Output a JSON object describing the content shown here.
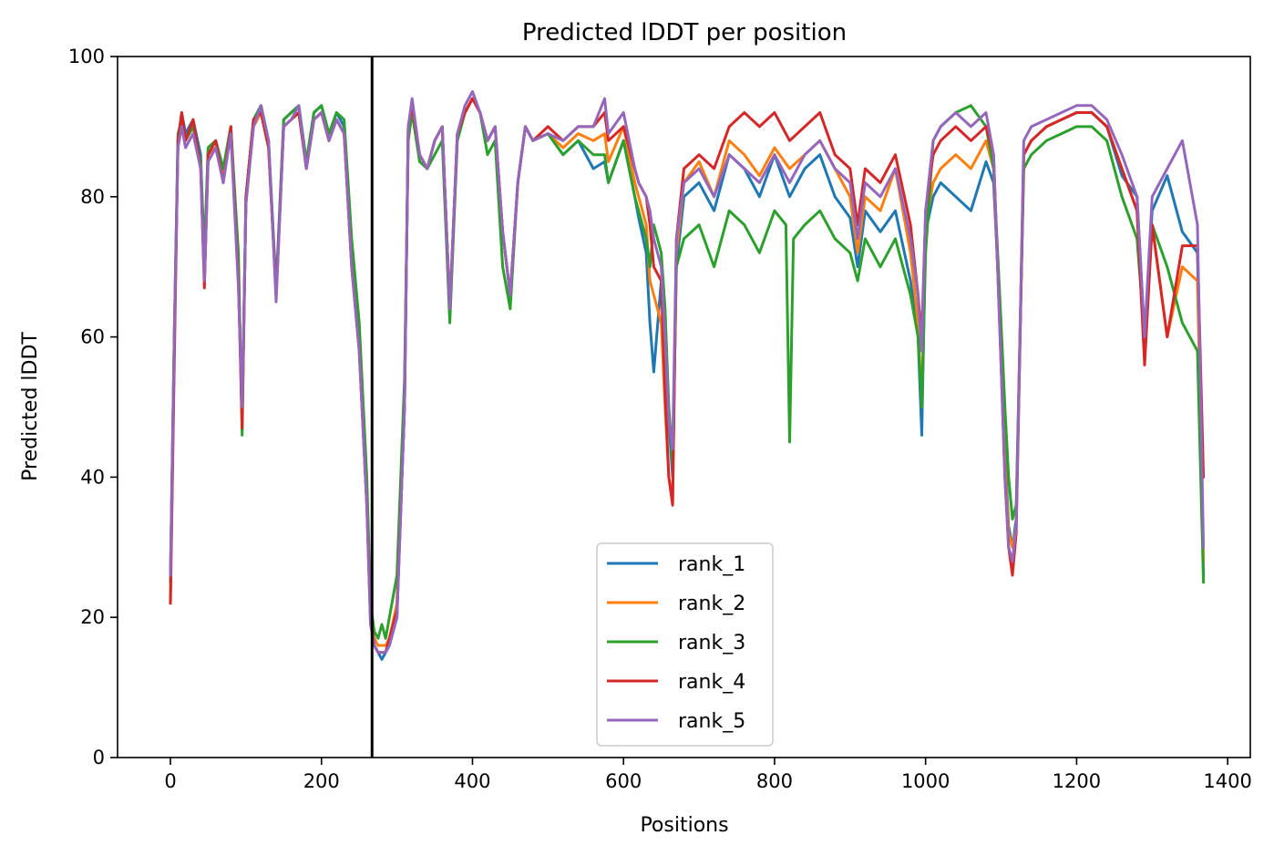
{
  "chart_data": {
    "type": "line",
    "title": "Predicted lDDT per position",
    "xlabel": "Positions",
    "ylabel": "Predicted lDDT",
    "xlim": [
      -70,
      1430
    ],
    "ylim": [
      0,
      100
    ],
    "xticks": [
      0,
      200,
      400,
      600,
      800,
      1000,
      1200,
      1400
    ],
    "yticks": [
      0,
      20,
      40,
      60,
      80,
      100
    ],
    "grid": false,
    "legend": "bottom-center",
    "vline_x": 267,
    "series": [
      {
        "name": "rank_1",
        "color": "#1f77b4",
        "x": [
          0,
          5,
          10,
          15,
          20,
          30,
          40,
          45,
          50,
          60,
          70,
          80,
          90,
          95,
          100,
          110,
          120,
          130,
          140,
          150,
          160,
          170,
          180,
          190,
          200,
          210,
          220,
          230,
          240,
          250,
          260,
          265,
          270,
          275,
          280,
          285,
          290,
          300,
          310,
          315,
          320,
          330,
          340,
          350,
          360,
          370,
          380,
          390,
          400,
          410,
          420,
          430,
          440,
          450,
          460,
          470,
          480,
          500,
          520,
          540,
          560,
          575,
          580,
          600,
          615,
          620,
          630,
          635,
          640,
          650,
          655,
          660,
          665,
          670,
          680,
          700,
          720,
          740,
          760,
          780,
          800,
          820,
          840,
          860,
          880,
          900,
          910,
          920,
          940,
          960,
          980,
          990,
          995,
          1000,
          1010,
          1020,
          1040,
          1060,
          1080,
          1090,
          1100,
          1105,
          1110,
          1115,
          1120,
          1130,
          1140,
          1160,
          1180,
          1200,
          1220,
          1240,
          1260,
          1280,
          1290,
          1300,
          1320,
          1340,
          1360,
          1368
        ],
        "y": [
          26,
          60,
          88,
          92,
          89,
          91,
          86,
          70,
          87,
          88,
          84,
          90,
          70,
          48,
          80,
          91,
          93,
          88,
          67,
          91,
          92,
          93,
          85,
          92,
          93,
          89,
          92,
          90,
          72,
          60,
          38,
          20,
          16,
          15,
          14,
          15,
          16,
          20,
          50,
          90,
          93,
          86,
          84,
          88,
          90,
          64,
          89,
          92,
          94,
          92,
          88,
          90,
          75,
          66,
          82,
          90,
          88,
          89,
          86,
          88,
          84,
          85,
          82,
          88,
          80,
          77,
          72,
          62,
          55,
          68,
          60,
          48,
          40,
          70,
          80,
          82,
          78,
          86,
          84,
          80,
          86,
          80,
          84,
          86,
          80,
          77,
          70,
          78,
          75,
          78,
          68,
          60,
          46,
          75,
          80,
          82,
          80,
          78,
          85,
          82,
          60,
          44,
          33,
          30,
          34,
          86,
          88,
          90,
          91,
          92,
          92,
          90,
          83,
          80,
          60,
          78,
          83,
          75,
          72,
          26
        ]
      },
      {
        "name": "rank_2",
        "color": "#ff7f0e",
        "x": [
          0,
          5,
          10,
          15,
          20,
          30,
          40,
          45,
          50,
          60,
          70,
          80,
          90,
          95,
          100,
          110,
          120,
          130,
          140,
          150,
          160,
          170,
          180,
          190,
          200,
          210,
          220,
          230,
          240,
          250,
          260,
          265,
          270,
          275,
          280,
          285,
          290,
          300,
          310,
          315,
          320,
          330,
          340,
          350,
          360,
          370,
          380,
          390,
          400,
          410,
          420,
          430,
          440,
          450,
          460,
          470,
          480,
          500,
          520,
          540,
          560,
          575,
          580,
          600,
          615,
          620,
          630,
          635,
          640,
          650,
          655,
          660,
          665,
          670,
          680,
          700,
          720,
          740,
          760,
          780,
          800,
          820,
          840,
          860,
          880,
          900,
          910,
          920,
          940,
          960,
          980,
          990,
          995,
          1000,
          1010,
          1020,
          1040,
          1060,
          1080,
          1090,
          1100,
          1105,
          1110,
          1115,
          1120,
          1130,
          1140,
          1160,
          1180,
          1200,
          1220,
          1240,
          1260,
          1280,
          1290,
          1300,
          1320,
          1340,
          1360,
          1368
        ],
        "y": [
          22,
          58,
          88,
          91,
          88,
          90,
          85,
          68,
          86,
          87,
          83,
          89,
          68,
          50,
          79,
          90,
          92,
          87,
          66,
          90,
          91,
          92,
          84,
          91,
          92,
          88,
          91,
          89,
          70,
          58,
          36,
          19,
          17,
          16,
          16,
          16,
          17,
          22,
          52,
          90,
          93,
          86,
          84,
          88,
          90,
          64,
          89,
          92,
          94,
          92,
          88,
          90,
          75,
          66,
          82,
          90,
          88,
          89,
          87,
          89,
          88,
          89,
          85,
          90,
          82,
          80,
          76,
          68,
          66,
          62,
          50,
          40,
          37,
          72,
          82,
          85,
          80,
          88,
          86,
          83,
          87,
          84,
          86,
          88,
          84,
          80,
          72,
          80,
          78,
          84,
          72,
          62,
          50,
          76,
          82,
          84,
          86,
          84,
          88,
          84,
          58,
          42,
          32,
          30,
          33,
          86,
          88,
          90,
          91,
          92,
          92,
          90,
          84,
          78,
          57,
          76,
          60,
          70,
          68,
          28
        ]
      },
      {
        "name": "rank_3",
        "color": "#2ca02c",
        "x": [
          0,
          5,
          10,
          15,
          20,
          30,
          40,
          45,
          50,
          60,
          70,
          80,
          90,
          95,
          100,
          110,
          120,
          130,
          140,
          150,
          160,
          170,
          180,
          190,
          200,
          210,
          220,
          230,
          240,
          250,
          260,
          265,
          270,
          275,
          280,
          285,
          290,
          300,
          310,
          315,
          320,
          330,
          340,
          350,
          360,
          370,
          380,
          390,
          400,
          410,
          420,
          430,
          440,
          450,
          460,
          470,
          480,
          500,
          520,
          540,
          560,
          575,
          580,
          600,
          615,
          620,
          630,
          635,
          640,
          650,
          655,
          660,
          665,
          670,
          680,
          700,
          720,
          740,
          760,
          780,
          800,
          815,
          820,
          825,
          840,
          860,
          880,
          900,
          910,
          920,
          940,
          960,
          980,
          990,
          995,
          1000,
          1010,
          1020,
          1040,
          1060,
          1080,
          1090,
          1100,
          1105,
          1110,
          1115,
          1120,
          1130,
          1140,
          1160,
          1180,
          1200,
          1220,
          1240,
          1260,
          1280,
          1290,
          1300,
          1320,
          1340,
          1360,
          1368
        ],
        "y": [
          25,
          60,
          89,
          91,
          88,
          90,
          85,
          72,
          87,
          88,
          84,
          90,
          72,
          46,
          80,
          91,
          93,
          88,
          66,
          91,
          92,
          93,
          85,
          92,
          93,
          89,
          92,
          91,
          74,
          62,
          40,
          22,
          18,
          17,
          19,
          17,
          20,
          26,
          54,
          88,
          92,
          85,
          84,
          86,
          88,
          62,
          88,
          92,
          94,
          92,
          86,
          88,
          70,
          64,
          82,
          90,
          88,
          89,
          86,
          88,
          86,
          86,
          82,
          88,
          80,
          78,
          74,
          70,
          76,
          72,
          64,
          50,
          42,
          70,
          74,
          76,
          70,
          78,
          76,
          72,
          78,
          76,
          45,
          74,
          76,
          78,
          74,
          72,
          68,
          74,
          70,
          74,
          66,
          60,
          50,
          72,
          88,
          90,
          92,
          93,
          90,
          84,
          62,
          50,
          40,
          34,
          36,
          84,
          86,
          88,
          89,
          90,
          90,
          88,
          80,
          74,
          60,
          76,
          70,
          62,
          58,
          25
        ]
      },
      {
        "name": "rank_4",
        "color": "#d62728",
        "x": [
          0,
          5,
          10,
          15,
          20,
          30,
          40,
          45,
          50,
          60,
          70,
          80,
          90,
          95,
          100,
          110,
          120,
          130,
          140,
          150,
          160,
          170,
          180,
          190,
          200,
          210,
          220,
          230,
          240,
          250,
          260,
          265,
          270,
          275,
          280,
          285,
          290,
          300,
          310,
          315,
          320,
          330,
          340,
          350,
          360,
          370,
          380,
          390,
          400,
          410,
          420,
          430,
          440,
          450,
          460,
          470,
          480,
          500,
          520,
          540,
          560,
          575,
          580,
          600,
          615,
          620,
          630,
          635,
          640,
          650,
          655,
          660,
          665,
          670,
          680,
          700,
          720,
          740,
          760,
          780,
          800,
          820,
          840,
          860,
          880,
          900,
          910,
          920,
          940,
          960,
          980,
          990,
          995,
          1000,
          1010,
          1020,
          1040,
          1060,
          1080,
          1090,
          1100,
          1105,
          1110,
          1115,
          1120,
          1130,
          1140,
          1160,
          1180,
          1200,
          1220,
          1240,
          1260,
          1280,
          1290,
          1300,
          1320,
          1340,
          1360,
          1368
        ],
        "y": [
          22,
          56,
          88,
          92,
          88,
          91,
          84,
          67,
          86,
          88,
          82,
          90,
          68,
          47,
          80,
          91,
          92,
          87,
          66,
          90,
          91,
          92,
          84,
          91,
          92,
          88,
          91,
          89,
          70,
          58,
          36,
          20,
          16,
          15,
          15,
          15,
          17,
          21,
          50,
          90,
          93,
          86,
          84,
          88,
          90,
          64,
          89,
          92,
          94,
          92,
          88,
          90,
          75,
          66,
          82,
          90,
          88,
          90,
          88,
          90,
          90,
          92,
          88,
          90,
          84,
          82,
          80,
          76,
          70,
          68,
          52,
          40,
          36,
          74,
          84,
          86,
          84,
          90,
          92,
          90,
          92,
          88,
          90,
          92,
          86,
          84,
          76,
          84,
          82,
          86,
          76,
          66,
          60,
          78,
          86,
          88,
          90,
          88,
          90,
          86,
          56,
          40,
          30,
          26,
          32,
          86,
          88,
          90,
          91,
          92,
          92,
          90,
          84,
          78,
          56,
          76,
          60,
          73,
          73,
          40
        ]
      },
      {
        "name": "rank_5",
        "color": "#9467bd",
        "x": [
          0,
          5,
          10,
          15,
          20,
          30,
          40,
          45,
          50,
          60,
          70,
          80,
          90,
          95,
          100,
          110,
          120,
          130,
          140,
          150,
          160,
          170,
          180,
          190,
          200,
          210,
          220,
          230,
          240,
          250,
          260,
          265,
          270,
          275,
          280,
          285,
          290,
          300,
          310,
          315,
          320,
          330,
          340,
          350,
          360,
          370,
          380,
          390,
          400,
          410,
          420,
          430,
          440,
          450,
          460,
          470,
          480,
          500,
          520,
          540,
          560,
          575,
          580,
          600,
          615,
          620,
          630,
          635,
          640,
          650,
          655,
          660,
          665,
          670,
          680,
          700,
          720,
          740,
          760,
          780,
          800,
          820,
          840,
          860,
          880,
          900,
          910,
          920,
          940,
          960,
          980,
          990,
          995,
          1000,
          1010,
          1020,
          1040,
          1060,
          1080,
          1090,
          1100,
          1105,
          1110,
          1115,
          1120,
          1130,
          1140,
          1160,
          1180,
          1200,
          1220,
          1240,
          1260,
          1280,
          1290,
          1300,
          1320,
          1340,
          1360,
          1368
        ],
        "y": [
          26,
          60,
          87,
          90,
          87,
          89,
          84,
          68,
          85,
          87,
          82,
          89,
          67,
          50,
          79,
          90,
          93,
          88,
          65,
          90,
          91,
          93,
          84,
          91,
          92,
          88,
          91,
          89,
          70,
          58,
          36,
          19,
          16,
          15,
          15,
          15,
          16,
          20,
          50,
          90,
          94,
          86,
          84,
          88,
          90,
          64,
          89,
          93,
          95,
          92,
          88,
          90,
          75,
          66,
          82,
          90,
          88,
          89,
          88,
          90,
          90,
          94,
          89,
          92,
          84,
          82,
          80,
          78,
          74,
          70,
          60,
          48,
          44,
          74,
          82,
          84,
          80,
          86,
          84,
          82,
          86,
          82,
          86,
          88,
          84,
          82,
          74,
          82,
          80,
          84,
          74,
          66,
          58,
          78,
          88,
          90,
          92,
          90,
          92,
          86,
          56,
          40,
          30,
          28,
          33,
          88,
          90,
          91,
          92,
          93,
          93,
          91,
          86,
          80,
          60,
          80,
          84,
          88,
          76,
          30
        ]
      }
    ]
  }
}
